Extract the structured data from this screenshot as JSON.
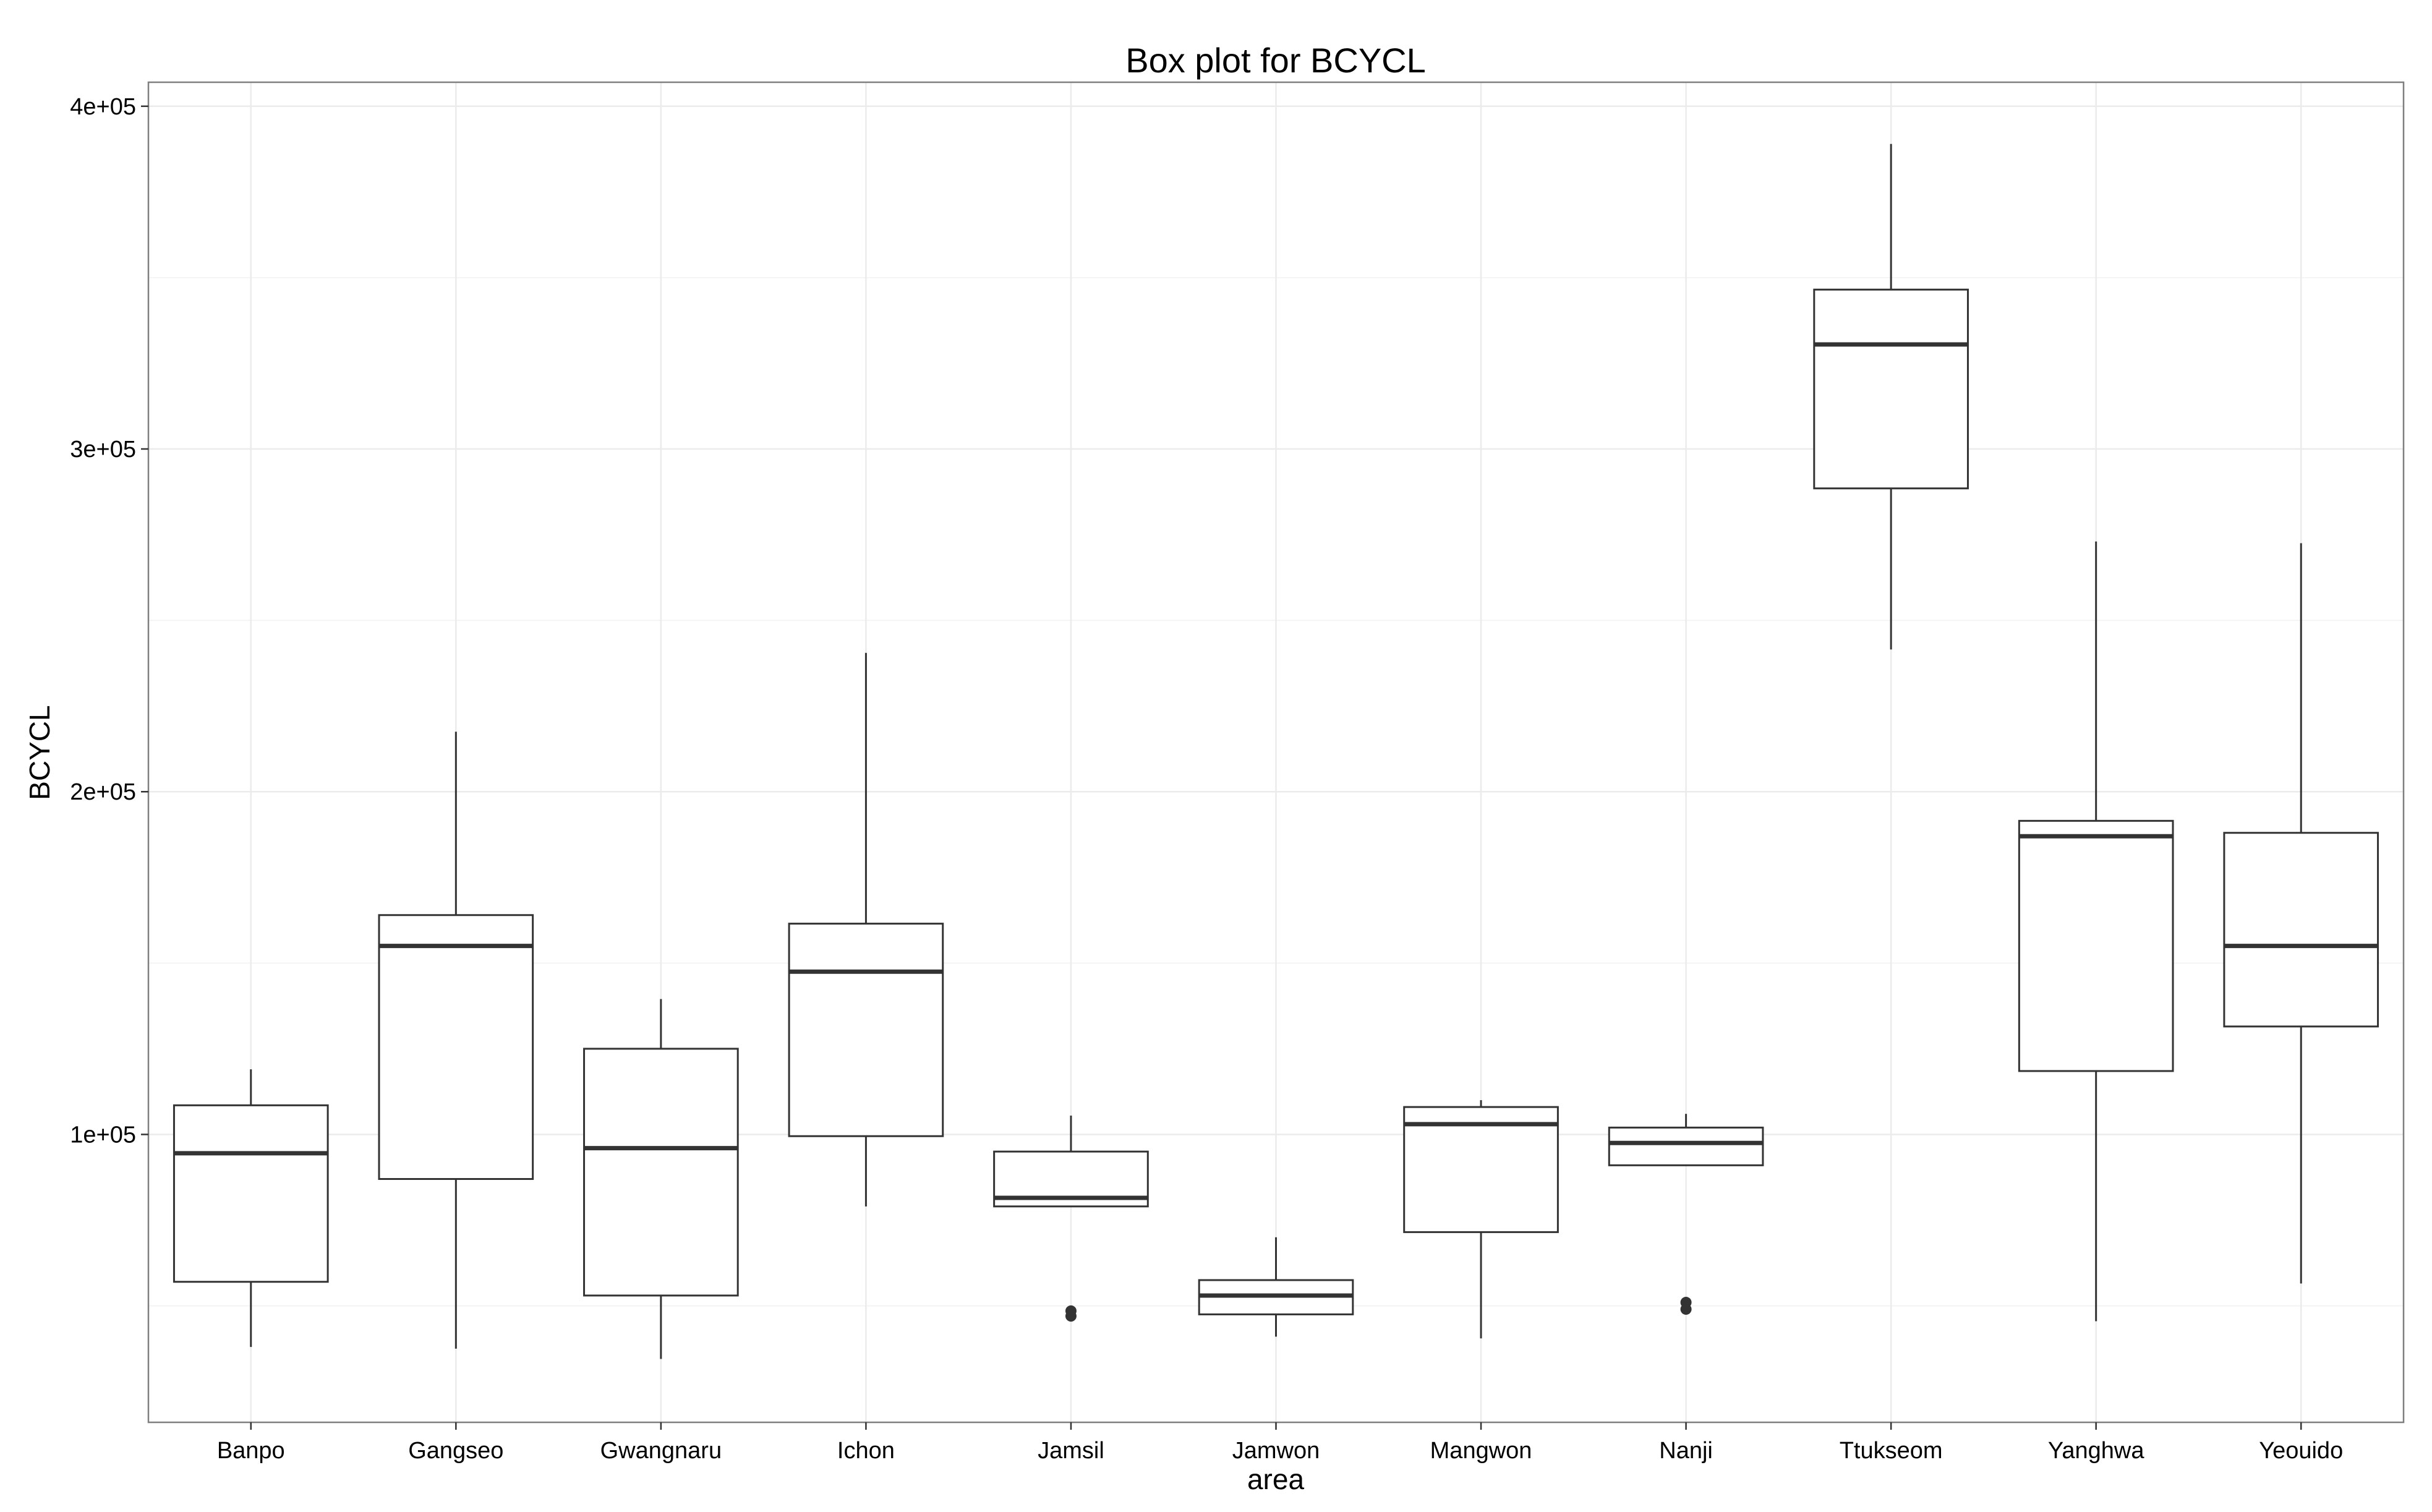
{
  "chart_data": {
    "type": "box",
    "title": "Box plot for BCYCL",
    "xlabel": "area",
    "ylabel": "BCYCL",
    "ylim": [
      16000,
      407000
    ],
    "y_ticks": [
      100000,
      200000,
      300000,
      400000
    ],
    "y_tick_labels": [
      "1e+05",
      "2e+05",
      "3e+05",
      "4e+05"
    ],
    "y_minor_ticks": [
      50000,
      150000,
      250000,
      350000
    ],
    "grid": true,
    "categories": [
      "Banpo",
      "Gangseo",
      "Gwangnaru",
      "Ichon",
      "Jamsil",
      "Jamwon",
      "Mangwon",
      "Nanji",
      "Ttukseom",
      "Yanghwa",
      "Yeouido"
    ],
    "boxes": [
      {
        "area": "Banpo",
        "whisker_low": 38000,
        "q1": 57000,
        "median": 94500,
        "q3": 108500,
        "whisker_high": 119000,
        "outliers": []
      },
      {
        "area": "Gangseo",
        "whisker_low": 37500,
        "q1": 87000,
        "median": 155000,
        "q3": 164000,
        "whisker_high": 217500,
        "outliers": []
      },
      {
        "area": "Gwangnaru",
        "whisker_low": 34500,
        "q1": 53000,
        "median": 96000,
        "q3": 125000,
        "whisker_high": 139500,
        "outliers": []
      },
      {
        "area": "Ichon",
        "whisker_low": 79000,
        "q1": 99500,
        "median": 147500,
        "q3": 161500,
        "whisker_high": 240500,
        "outliers": []
      },
      {
        "area": "Jamsil",
        "whisker_low": 79000,
        "q1": 79000,
        "median": 81500,
        "q3": 95000,
        "whisker_high": 105500,
        "outliers": [
          47000,
          48500
        ]
      },
      {
        "area": "Jamwon",
        "whisker_low": 41000,
        "q1": 47500,
        "median": 53000,
        "q3": 57500,
        "whisker_high": 70000,
        "outliers": []
      },
      {
        "area": "Mangwon",
        "whisker_low": 40500,
        "q1": 71500,
        "median": 103000,
        "q3": 108000,
        "whisker_high": 110000,
        "outliers": []
      },
      {
        "area": "Nanji",
        "whisker_low": 91000,
        "q1": 91000,
        "median": 97500,
        "q3": 102000,
        "whisker_high": 106000,
        "outliers": [
          49000,
          51000
        ]
      },
      {
        "area": "Ttukseom",
        "whisker_low": 241500,
        "q1": 288500,
        "median": 330500,
        "q3": 346500,
        "whisker_high": 389000,
        "outliers": []
      },
      {
        "area": "Yanghwa",
        "whisker_low": 45500,
        "q1": 118500,
        "median": 187000,
        "q3": 191500,
        "whisker_high": 273000,
        "outliers": []
      },
      {
        "area": "Yeouido",
        "whisker_low": 56500,
        "q1": 131500,
        "median": 155000,
        "q3": 188000,
        "whisker_high": 272500,
        "outliers": []
      }
    ]
  },
  "colors": {
    "background": "#ffffff",
    "panel_border": "#7f7f7f",
    "grid_major": "#ebebeb",
    "grid_minor": "#f4f4f4",
    "box_line": "#333333",
    "median_line": "#333333",
    "tick": "#333333"
  }
}
